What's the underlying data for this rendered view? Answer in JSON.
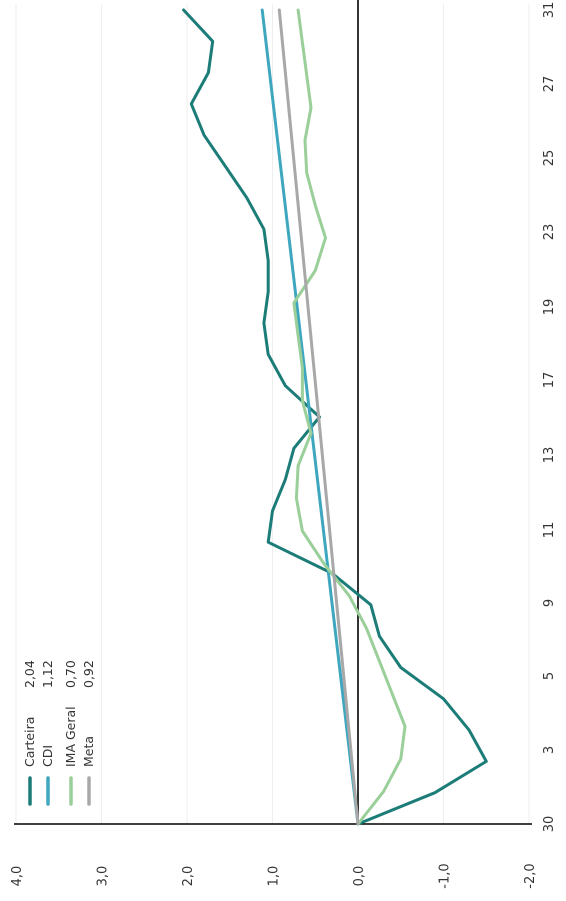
{
  "chart_data": {
    "type": "line",
    "orientation": "rotated-90-clockwise",
    "title": "",
    "xlabel": "",
    "ylabel": "",
    "x_ticks": [
      "30",
      "3",
      "5",
      "9",
      "11",
      "13",
      "17",
      "19",
      "23",
      "25",
      "27",
      "31"
    ],
    "y_ticks": [
      "4,0",
      "3,0",
      "2,0",
      "1,0",
      "0,0",
      "-1,0",
      "-2,0"
    ],
    "ylim": [
      -2,
      4
    ],
    "x_points": 31,
    "grid": "vertical-lines-at-y-ticks",
    "zero_line": true,
    "legend_position": "bottom-left",
    "series": [
      {
        "name": "Carteira",
        "value_label": "2,04",
        "color": "#1c7c78",
        "values": [
          0.0,
          -0.9,
          -1.5,
          -1.3,
          -1.0,
          -0.5,
          -0.25,
          -0.15,
          0.3,
          1.05,
          1.0,
          0.85,
          0.75,
          0.45,
          0.85,
          1.05,
          1.1,
          1.05,
          1.05,
          1.1,
          1.3,
          1.55,
          1.8,
          1.95,
          1.75,
          1.7,
          2.04
        ]
      },
      {
        "name": "CDI",
        "value_label": "1,12",
        "color": "#3fa6bf",
        "values": [
          0.0,
          1.12
        ]
      },
      {
        "name": "IMA Geral",
        "value_label": "0,70",
        "color": "#9acf9a",
        "values": [
          0.0,
          -0.3,
          -0.5,
          -0.55,
          -0.4,
          -0.25,
          -0.1,
          0.1,
          0.4,
          0.65,
          0.72,
          0.7,
          0.55,
          0.65,
          0.65,
          0.7,
          0.75,
          0.5,
          0.38,
          0.5,
          0.6,
          0.62,
          0.55,
          0.6,
          0.65,
          0.7
        ]
      },
      {
        "name": "Meta",
        "value_label": "0,92",
        "color": "#a8a8a8",
        "values": [
          0.0,
          0.92
        ]
      }
    ]
  }
}
